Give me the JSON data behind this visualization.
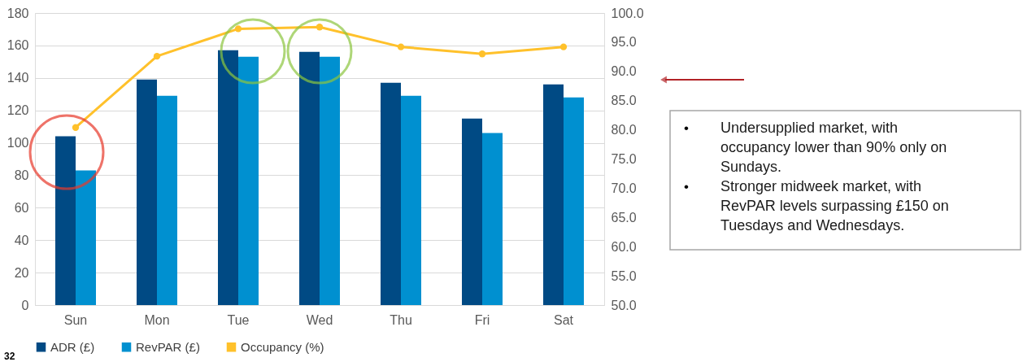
{
  "chart_data": {
    "type": "bar",
    "categories": [
      "Sun",
      "Mon",
      "Tue",
      "Wed",
      "Thu",
      "Fri",
      "Sat"
    ],
    "series": [
      {
        "name": "ADR (£)",
        "color": "#004a84",
        "values": [
          104,
          139,
          157,
          156,
          137,
          115,
          136
        ]
      },
      {
        "name": "RevPAR (£)",
        "color": "#0090d0",
        "values": [
          83,
          129,
          153,
          153,
          129,
          106,
          128
        ]
      },
      {
        "name": "Occupancy (%)",
        "color": "#ffc12b",
        "type": "line",
        "axis": "y2",
        "marker": "circle",
        "values": [
          80.4,
          92.6,
          97.3,
          97.6,
          94.2,
          93.0,
          94.2
        ]
      }
    ],
    "ylim": [
      0,
      180
    ],
    "yticks": [
      0,
      20,
      40,
      60,
      80,
      100,
      120,
      140,
      160,
      180
    ],
    "y2lim": [
      50,
      100
    ],
    "y2ticks": [
      {
        "value": 50,
        "label": "50.0"
      },
      {
        "value": 55,
        "label": "55.0"
      },
      {
        "value": 60,
        "label": "60.0"
      },
      {
        "value": 65,
        "label": "65.0"
      },
      {
        "value": 70,
        "label": "70.0"
      },
      {
        "value": 75,
        "label": "75.0"
      },
      {
        "value": 80,
        "label": "80.0"
      },
      {
        "value": 85,
        "label": "85.0"
      },
      {
        "value": 90,
        "label": "90.0"
      },
      {
        "value": 95,
        "label": "95.0"
      },
      {
        "value": 100,
        "label": "100.0"
      }
    ],
    "grid": "y",
    "legend": "bottom",
    "annotations": [
      "• Undersupplied market, with occupancy lower than 90% only on Sundays.",
      "• Stronger midweek market, with RevPAR levels surpassing £150 on Tuesdays and Wednesdays.",
      "32"
    ]
  }
}
